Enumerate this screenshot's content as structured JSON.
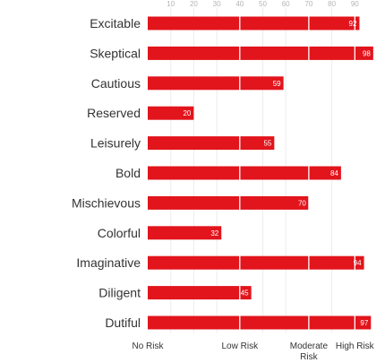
{
  "chart_data": {
    "type": "bar",
    "orientation": "horizontal",
    "categories": [
      "Excitable",
      "Skeptical",
      "Cautious",
      "Reserved",
      "Leisurely",
      "Bold",
      "Mischievous",
      "Colorful",
      "Imaginative",
      "Diligent",
      "Dutiful"
    ],
    "values": [
      92,
      98,
      59,
      20,
      55,
      84,
      70,
      32,
      94,
      45,
      97
    ],
    "xlim": [
      0,
      100
    ],
    "x_ticks": [
      10,
      20,
      30,
      40,
      50,
      60,
      70,
      80,
      90
    ],
    "x_tick_position": "top",
    "zone_labels": [
      {
        "value": 0,
        "lines": [
          "No Risk"
        ]
      },
      {
        "value": 40,
        "lines": [
          "Low Risk"
        ]
      },
      {
        "value": 70,
        "lines": [
          "Moderate",
          "Risk"
        ]
      },
      {
        "value": 90,
        "lines": [
          "High Risk"
        ]
      }
    ],
    "zone_divider_values": [
      40,
      70,
      90
    ],
    "grid": true,
    "data_labels": true,
    "bar_color": "#e2141c",
    "title": "",
    "xlabel": "",
    "ylabel": ""
  }
}
